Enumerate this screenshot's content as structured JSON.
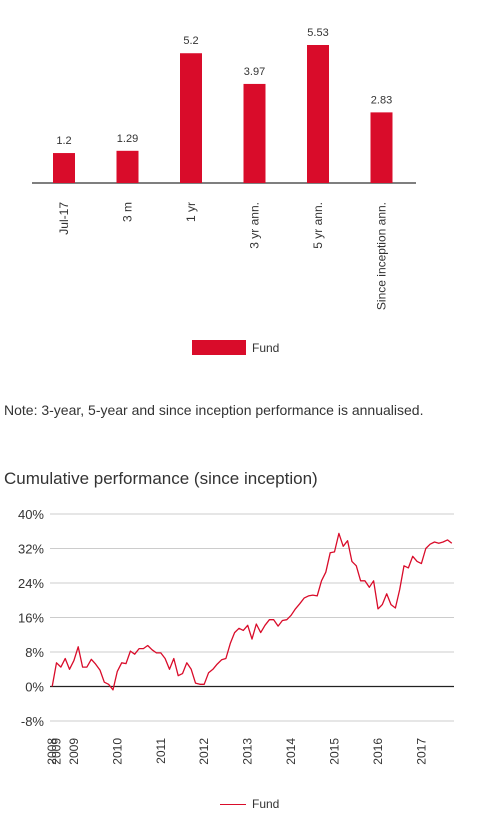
{
  "chart_data": [
    {
      "type": "bar",
      "categories": [
        "Jul-17",
        "3 m",
        "1 yr",
        "3 yr ann.",
        "5 yr ann.",
        "Since inception ann."
      ],
      "series": [
        {
          "name": "Fund",
          "values": [
            1.2,
            1.29,
            5.2,
            3.97,
            5.53,
            2.83
          ]
        }
      ],
      "data_labels": [
        "1.2",
        "1.29",
        "5.2",
        "3.97",
        "5.53",
        "2.83"
      ],
      "title": "",
      "xlabel": "",
      "ylabel": "",
      "ylim": [
        0,
        5.53
      ],
      "grid": false,
      "legend": "bottom-center",
      "color": "#d90c2a"
    },
    {
      "type": "line",
      "title": "Cumulative performance (since inception)",
      "xlabel": "",
      "ylabel": "",
      "ylim": [
        -8,
        40
      ],
      "xlim": [
        2008.45,
        2017.75
      ],
      "yticks": [
        -8,
        0,
        8,
        16,
        24,
        32,
        40
      ],
      "ytick_labels": [
        "-8%",
        "0%",
        "8%",
        "16%",
        "24%",
        "32%",
        "40%"
      ],
      "xticks": [
        2008.5,
        2008.6,
        2009.0,
        2010,
        2011,
        2012,
        2013,
        2014,
        2015,
        2016,
        2017
      ],
      "xtick_labels": [
        "2008",
        "2009",
        "2009",
        "2010",
        "2011",
        "2012",
        "2013",
        "2014",
        "2015",
        "2016",
        "2017"
      ],
      "grid": true,
      "legend": "bottom-center",
      "color": "#d90c2a",
      "series": [
        {
          "name": "Fund",
          "x": [
            2008.5,
            2008.6,
            2008.7,
            2008.8,
            2008.9,
            2009.0,
            2009.1,
            2009.2,
            2009.3,
            2009.4,
            2009.5,
            2009.6,
            2009.7,
            2009.8,
            2009.9,
            2010.0,
            2010.1,
            2010.2,
            2010.3,
            2010.4,
            2010.5,
            2010.6,
            2010.7,
            2010.8,
            2010.9,
            2011.0,
            2011.1,
            2011.2,
            2011.3,
            2011.4,
            2011.5,
            2011.6,
            2011.7,
            2011.8,
            2011.9,
            2012.0,
            2012.1,
            2012.2,
            2012.3,
            2012.4,
            2012.5,
            2012.6,
            2012.7,
            2012.8,
            2012.9,
            2013.0,
            2013.1,
            2013.2,
            2013.3,
            2013.4,
            2013.5,
            2013.6,
            2013.7,
            2013.8,
            2013.9,
            2014.0,
            2014.1,
            2014.2,
            2014.3,
            2014.4,
            2014.5,
            2014.6,
            2014.7,
            2014.8,
            2014.9,
            2015.0,
            2015.1,
            2015.2,
            2015.3,
            2015.4,
            2015.5,
            2015.6,
            2015.7,
            2015.8,
            2015.9,
            2016.0,
            2016.1,
            2016.2,
            2016.3,
            2016.4,
            2016.5,
            2016.6,
            2016.7,
            2016.8,
            2016.9,
            2017.0,
            2017.1,
            2017.2,
            2017.3,
            2017.4,
            2017.5,
            2017.6,
            2017.7
          ],
          "y": [
            0,
            5.5,
            4.5,
            6.5,
            4,
            6,
            9.2,
            4.5,
            4.5,
            6.3,
            5.2,
            3.8,
            1,
            0.5,
            -0.8,
            3.5,
            5.5,
            5.3,
            8.2,
            7.5,
            8.8,
            8.8,
            9.5,
            8.5,
            7.8,
            7.8,
            6.5,
            4,
            6.5,
            2.5,
            3,
            5.5,
            4,
            0.8,
            0.5,
            0.5,
            3.2,
            4,
            5.2,
            6.2,
            6.5,
            10,
            12.5,
            13.5,
            13,
            14.2,
            11,
            14.5,
            12.5,
            14.2,
            15.5,
            15.5,
            14,
            15.3,
            15.5,
            16.5,
            18,
            19.2,
            20.5,
            21,
            21.2,
            21,
            24.5,
            26.5,
            31,
            31.2,
            35.5,
            32.5,
            33.8,
            29,
            28,
            24.5,
            24.5,
            23,
            24.5,
            18,
            19,
            21.5,
            19,
            18.2,
            22.5,
            28,
            27.5,
            30.2,
            29,
            28.5,
            32,
            33,
            33.5,
            33.2,
            33.5,
            34,
            33.2
          ]
        }
      ]
    }
  ],
  "note": "Note: 3-year, 5-year and since inception performance is annualised.",
  "line_title": "Cumulative performance (since inception)",
  "legend_label": "Fund"
}
